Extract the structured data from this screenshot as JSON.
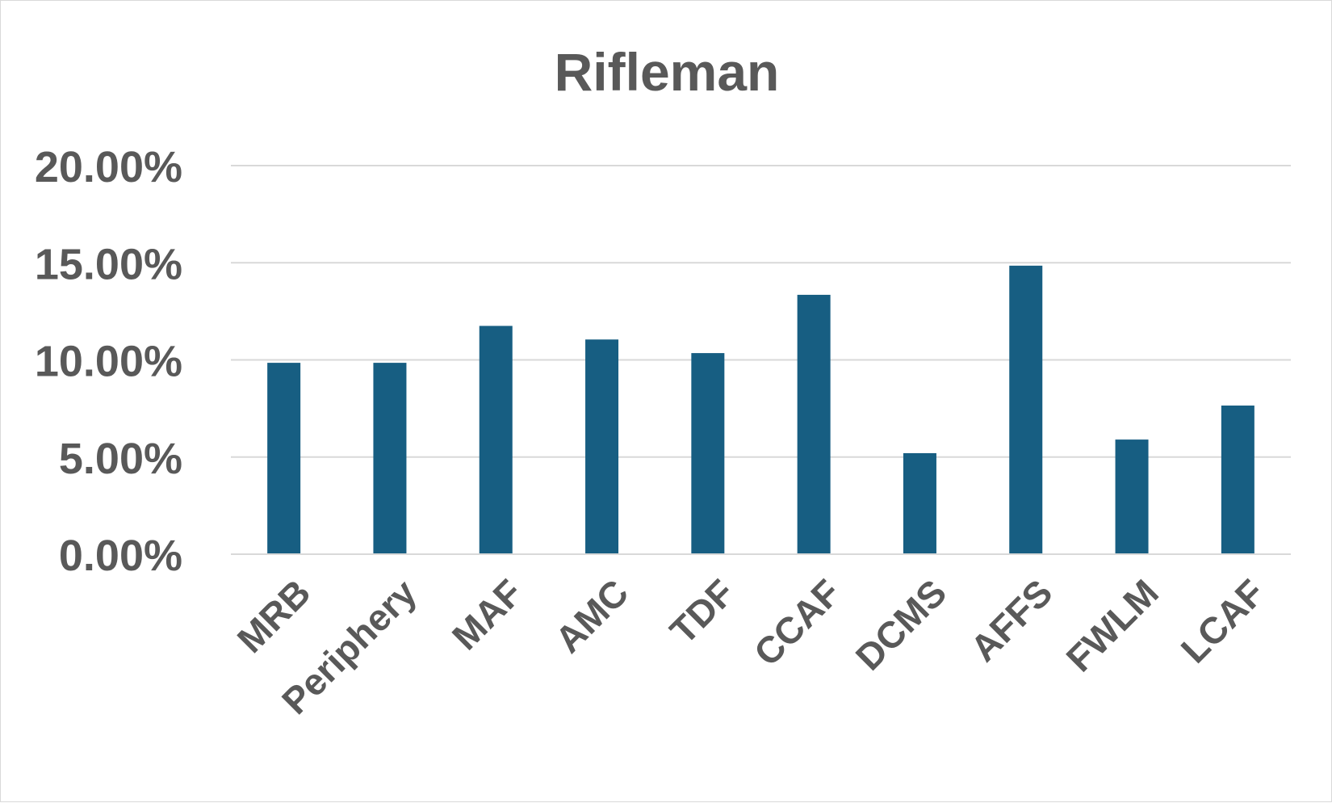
{
  "chart_data": {
    "type": "bar",
    "title": "Rifleman",
    "xlabel": "",
    "ylabel": "",
    "categories": [
      "MRB",
      "Periphery",
      "MAF",
      "AMC",
      "TDF",
      "CCAF",
      "DCMS",
      "AFFS",
      "FWLM",
      "LCAF"
    ],
    "values": [
      9.85,
      9.85,
      11.75,
      11.05,
      10.35,
      13.35,
      5.2,
      14.85,
      5.9,
      7.65
    ],
    "ylim": [
      0,
      20
    ],
    "yticks": [
      "0.00%",
      "5.00%",
      "10.00%",
      "15.00%",
      "20.00%"
    ],
    "ytick_values": [
      0,
      5,
      10,
      15,
      20
    ],
    "value_format": "percent",
    "grid": true,
    "legend": "none",
    "bar_color": "#175e82"
  }
}
